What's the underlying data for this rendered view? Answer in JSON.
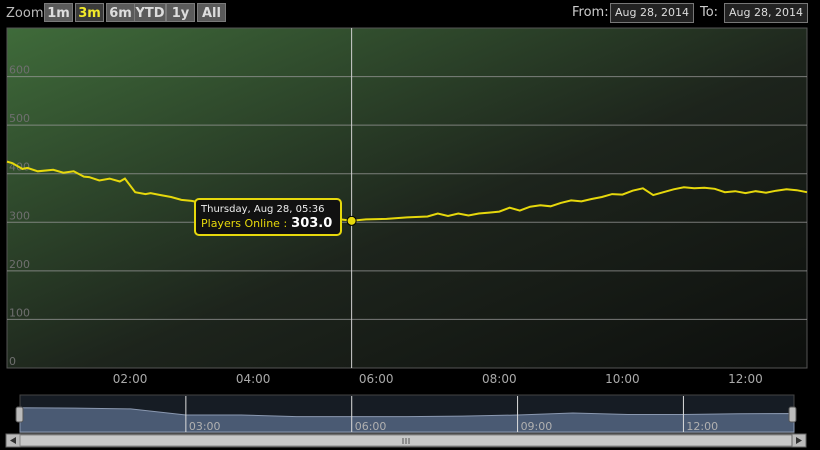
{
  "toolbar": {
    "zoom_label": "Zoom",
    "zoom_buttons": [
      "1m",
      "3m",
      "6m",
      "YTD",
      "1y",
      "All"
    ],
    "active_zoom": "3m",
    "from_label": "From:",
    "from_value": "Aug 28, 2014",
    "to_label": "To:",
    "to_value": "Aug 28, 2014"
  },
  "tooltip": {
    "date": "Thursday, Aug 28, 05:36",
    "series_label": "Players Online",
    "value": "303.0"
  },
  "colors": {
    "series": "#e6d80c",
    "plot_bg_light": "#3f6b3a",
    "plot_bg_dark": "#141714",
    "navigator_fill": "#4a5a73"
  },
  "chart_data": {
    "type": "line",
    "series": [
      {
        "name": "Players Online",
        "x": [
          "00:00",
          "00:05",
          "00:15",
          "00:20",
          "00:30",
          "00:45",
          "00:55",
          "01:05",
          "01:15",
          "01:20",
          "01:30",
          "01:40",
          "01:50",
          "01:55",
          "02:05",
          "02:15",
          "02:20",
          "02:30",
          "02:40",
          "02:50",
          "03:00",
          "03:10",
          "03:20",
          "03:40",
          "04:00",
          "04:20",
          "04:40",
          "05:00",
          "05:15",
          "05:25",
          "05:36",
          "05:50",
          "06:10",
          "06:30",
          "06:50",
          "07:00",
          "07:10",
          "07:20",
          "07:30",
          "07:40",
          "07:50",
          "08:00",
          "08:10",
          "08:20",
          "08:30",
          "08:40",
          "08:50",
          "09:00",
          "09:10",
          "09:20",
          "09:30",
          "09:40",
          "09:50",
          "10:00",
          "10:10",
          "10:20",
          "10:30",
          "10:40",
          "10:50",
          "11:00",
          "11:10",
          "11:20",
          "11:30",
          "11:40",
          "11:50",
          "12:00",
          "12:10",
          "12:20",
          "12:30",
          "12:40",
          "12:50",
          "13:00"
        ],
        "y": [
          425,
          422,
          410,
          412,
          405,
          408,
          402,
          405,
          394,
          393,
          386,
          390,
          384,
          390,
          362,
          358,
          360,
          356,
          352,
          346,
          344,
          340,
          334,
          330,
          326,
          324,
          322,
          320,
          310,
          306,
          303,
          306,
          307,
          310,
          312,
          318,
          313,
          318,
          314,
          318,
          320,
          322,
          330,
          324,
          332,
          335,
          333,
          340,
          345,
          343,
          348,
          352,
          358,
          357,
          365,
          370,
          356,
          362,
          368,
          372,
          370,
          371,
          369,
          362,
          364,
          360,
          364,
          361,
          365,
          368,
          366,
          362
        ]
      }
    ],
    "ylim": [
      0,
      700
    ],
    "yticks": [
      "0",
      "100",
      "200",
      "300",
      "400",
      "500",
      "600"
    ],
    "xticks": [
      "02:00",
      "04:00",
      "06:00",
      "08:00",
      "10:00",
      "12:00"
    ],
    "xlim": [
      "00:00",
      "13:00"
    ],
    "crosshair_x": "05:36",
    "grid": true,
    "navigator": {
      "labels": [
        "03:00",
        "06:00",
        "09:00",
        "12:00"
      ],
      "x": [
        "00:00",
        "01:00",
        "02:00",
        "03:00",
        "04:00",
        "05:00",
        "06:00",
        "07:00",
        "08:00",
        "09:00",
        "10:00",
        "11:00",
        "12:00",
        "13:00",
        "14:00"
      ],
      "y": [
        470,
        465,
        450,
        330,
        330,
        300,
        300,
        300,
        310,
        330,
        370,
        340,
        340,
        355,
        360
      ],
      "xlim": [
        "00:00",
        "14:00"
      ]
    }
  }
}
